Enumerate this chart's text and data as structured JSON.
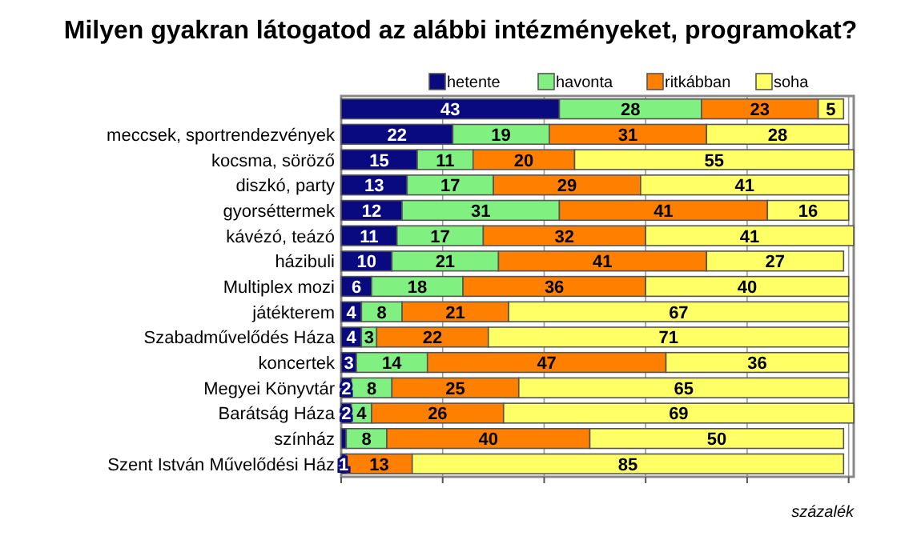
{
  "chart_data": {
    "type": "bar",
    "orientation": "horizontal",
    "stacked": true,
    "title": "Milyen gyakran látogatod az alábbi intézményeket, programokat?",
    "xlabel": "százalék",
    "categories": [
      null,
      "meccsek, sportrendezvények",
      "kocsma, söröző",
      "diszkó, party",
      "gyorséttermek",
      "kávézó, teázó",
      "házibuli",
      "Multiplex mozi",
      "játékterem",
      "Szabadművelődés Háza",
      "koncertek",
      "Megyei Könyvtár",
      "Barátság Háza",
      "színház",
      "Szent István Művelődési Ház"
    ],
    "series": [
      {
        "name": "hetente",
        "color": "#0a0a80",
        "values": [
          43,
          22,
          15,
          13,
          12,
          11,
          10,
          6,
          4,
          4,
          3,
          2,
          2,
          1,
          1
        ],
        "value_labels": [
          "43",
          "22",
          "15",
          "13",
          "12",
          "11",
          "10",
          "6",
          "4",
          "4",
          "3",
          "2",
          "2",
          null,
          "1"
        ]
      },
      {
        "name": "havonta",
        "color": "#80f080",
        "values": [
          28,
          19,
          11,
          17,
          31,
          17,
          21,
          18,
          8,
          3,
          14,
          8,
          4,
          8,
          null
        ],
        "value_labels": [
          "28",
          "19",
          "11",
          "17",
          "31",
          "17",
          "21",
          "18",
          "8",
          "3",
          "14",
          "8",
          "4",
          "8",
          null
        ]
      },
      {
        "name": "ritkábban",
        "color": "#ff7f00",
        "values": [
          23,
          31,
          20,
          29,
          41,
          32,
          41,
          36,
          21,
          22,
          47,
          25,
          26,
          40,
          13
        ],
        "value_labels": [
          "23",
          "31",
          "20",
          "29",
          "41",
          "32",
          "41",
          "36",
          "21",
          "22",
          "47",
          "25",
          "26",
          "40",
          "13"
        ]
      },
      {
        "name": "soha",
        "color": "#ffff66",
        "values": [
          5,
          28,
          55,
          41,
          16,
          41,
          27,
          40,
          67,
          71,
          36,
          65,
          69,
          50,
          85
        ],
        "value_labels": [
          "5",
          "28",
          "55",
          "41",
          "16",
          "41",
          "27",
          "40",
          "67",
          "71",
          "36",
          "65",
          "69",
          "50",
          "85"
        ]
      }
    ],
    "xlim": [
      0,
      101
    ],
    "xticks": [
      {
        "value": 0,
        "label": null
      },
      {
        "value": 20,
        "label": null
      },
      {
        "value": 40,
        "label": null
      },
      {
        "value": 60,
        "label": null
      },
      {
        "value": 80,
        "label": null
      },
      {
        "value": 100,
        "label": null
      }
    ],
    "grid": "x",
    "legend": "top right",
    "tick_labels": "y"
  }
}
